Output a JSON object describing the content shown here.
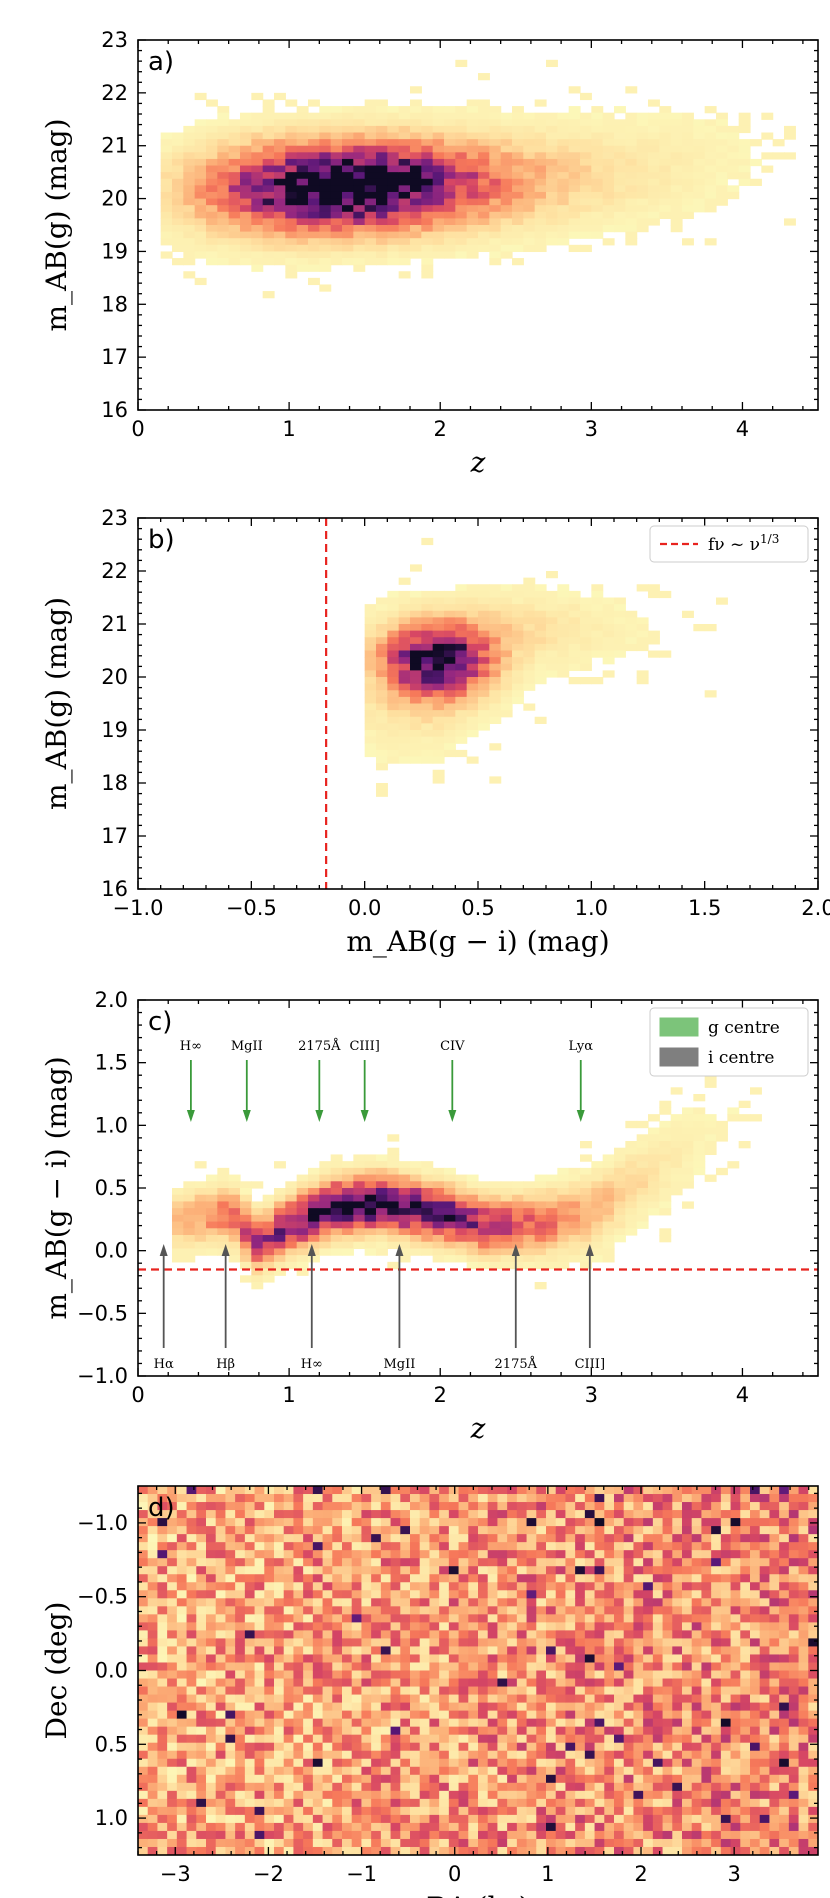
{
  "chart_data": [
    {
      "panel": "a)",
      "type": "heatmap",
      "description": "2D histogram of g-band AB magnitude versus redshift",
      "xlabel": "z",
      "ylabel": "m_AB(g) (mag)",
      "xlim": [
        0,
        4.5
      ],
      "ylim": [
        23,
        16
      ],
      "xticks": [
        0,
        1,
        2,
        3,
        4
      ],
      "yticks": [
        16,
        17,
        18,
        19,
        20,
        21,
        22,
        23
      ],
      "density_model": {
        "peaks": [
          {
            "x": 1.5,
            "y": 20.25,
            "sx": 0.55,
            "sy": 0.55,
            "w": 1.0
          },
          {
            "x": 0.9,
            "y": 20.1,
            "sx": 0.45,
            "sy": 0.6,
            "w": 0.35
          },
          {
            "x": 2.5,
            "y": 20.4,
            "sx": 0.6,
            "sy": 0.6,
            "w": 0.18
          },
          {
            "x": 3.5,
            "y": 20.8,
            "sx": 0.5,
            "sy": 0.7,
            "w": 0.05
          }
        ],
        "support_x": [
          0.15,
          4.35
        ]
      }
    },
    {
      "panel": "b)",
      "type": "heatmap",
      "description": "2D histogram of g-band AB magnitude versus g-i colour",
      "xlabel": "m_AB(g − i) (mag)",
      "ylabel": "m_AB(g) (mag)",
      "xlim": [
        -1.0,
        2.0
      ],
      "ylim": [
        23,
        16
      ],
      "xticks": [
        -1.0,
        -0.5,
        0.0,
        0.5,
        1.0,
        1.5,
        2.0
      ],
      "xtick_labels": [
        "−1.0",
        "−0.5",
        "0.0",
        "0.5",
        "1.0",
        "1.5",
        "2.0"
      ],
      "yticks": [
        16,
        17,
        18,
        19,
        20,
        21,
        22,
        23
      ],
      "reference_line": {
        "orientation": "vertical",
        "x": -0.17,
        "style": "dashed",
        "color": "#e8231f",
        "label": "f_ν ~ ν^{1/3}"
      },
      "legend_entry_text": "fν ~ ν",
      "legend_entry_sup": "1/3",
      "density_model": {
        "peaks": [
          {
            "x": 0.32,
            "y": 20.3,
            "sx": 0.16,
            "sy": 0.45,
            "w": 1.0
          },
          {
            "x": 0.65,
            "y": 20.9,
            "sx": 0.35,
            "sy": 0.45,
            "w": 0.15
          },
          {
            "x": 0.2,
            "y": 19.4,
            "sx": 0.2,
            "sy": 0.6,
            "w": 0.12
          }
        ],
        "support_x": [
          0.0,
          1.85
        ]
      }
    },
    {
      "panel": "c)",
      "type": "heatmap",
      "description": "2D histogram of g-i colour versus redshift with emission-line passages through g and i filter centres",
      "xlabel": "z",
      "ylabel": "m_AB(g − i) (mag)",
      "xlim": [
        0,
        4.5
      ],
      "ylim": [
        2.0,
        -1.0
      ],
      "xticks": [
        0,
        1,
        2,
        3,
        4
      ],
      "yticks": [
        -1.0,
        -0.5,
        0.0,
        0.5,
        1.0,
        1.5,
        2.0
      ],
      "ytick_labels": [
        "−1.0",
        "−0.5",
        "0.0",
        "0.5",
        "1.0",
        "1.5",
        "2.0"
      ],
      "reference_line": {
        "orientation": "horizontal",
        "y": -0.15,
        "style": "dashed",
        "color": "#e8231f"
      },
      "legend": [
        {
          "label": "g centre",
          "color": "#7cc47a"
        },
        {
          "label": "i centre",
          "color": "#7f7f7f"
        }
      ],
      "g_centre_lines": [
        {
          "label": "H∞",
          "z": 0.35
        },
        {
          "label": "MgII",
          "z": 0.72
        },
        {
          "label": "2175Å",
          "z": 1.2
        },
        {
          "label": "CIII]",
          "z": 1.5
        },
        {
          "label": "CIV",
          "z": 2.08
        },
        {
          "label": "Lyα",
          "z": 2.93
        }
      ],
      "i_centre_lines": [
        {
          "label": "Hα",
          "z": 0.17
        },
        {
          "label": "Hβ",
          "z": 0.58
        },
        {
          "label": "H∞",
          "z": 1.15
        },
        {
          "label": "MgII",
          "z": 1.73
        },
        {
          "label": "2175Å",
          "z": 2.5
        },
        {
          "label": "CIII]",
          "z": 2.99
        }
      ],
      "density_model": {
        "ridge_z": [
          0.3,
          0.6,
          0.8,
          1.0,
          1.3,
          1.6,
          2.0,
          2.3,
          2.7,
          3.0,
          3.5,
          4.2
        ],
        "ridge_color": [
          0.25,
          0.3,
          0.05,
          0.2,
          0.35,
          0.38,
          0.3,
          0.2,
          0.22,
          0.3,
          0.7,
          1.3
        ]
      }
    },
    {
      "panel": "d)",
      "type": "heatmap",
      "description": "Sky distribution of sources (2D histogram in RA and Dec)",
      "xlabel": "RA (hr)",
      "ylabel": "Dec (deg)",
      "xlim": [
        -3.4,
        3.9
      ],
      "ylim": [
        -1.25,
        1.25
      ],
      "xticks": [
        -3,
        -2,
        -1,
        0,
        1,
        2,
        3
      ],
      "xtick_labels": [
        "−3",
        "−2",
        "−1",
        "0",
        "1",
        "2",
        "3"
      ],
      "yticks": [
        -1.0,
        -0.5,
        0.0,
        0.5,
        1.0
      ],
      "ytick_labels": [
        "−1.0",
        "−0.5",
        "0.0",
        "0.5",
        "1.0"
      ],
      "density_model": {
        "uniform_level": 0.3,
        "ra_gradient": 0.12
      }
    }
  ]
}
